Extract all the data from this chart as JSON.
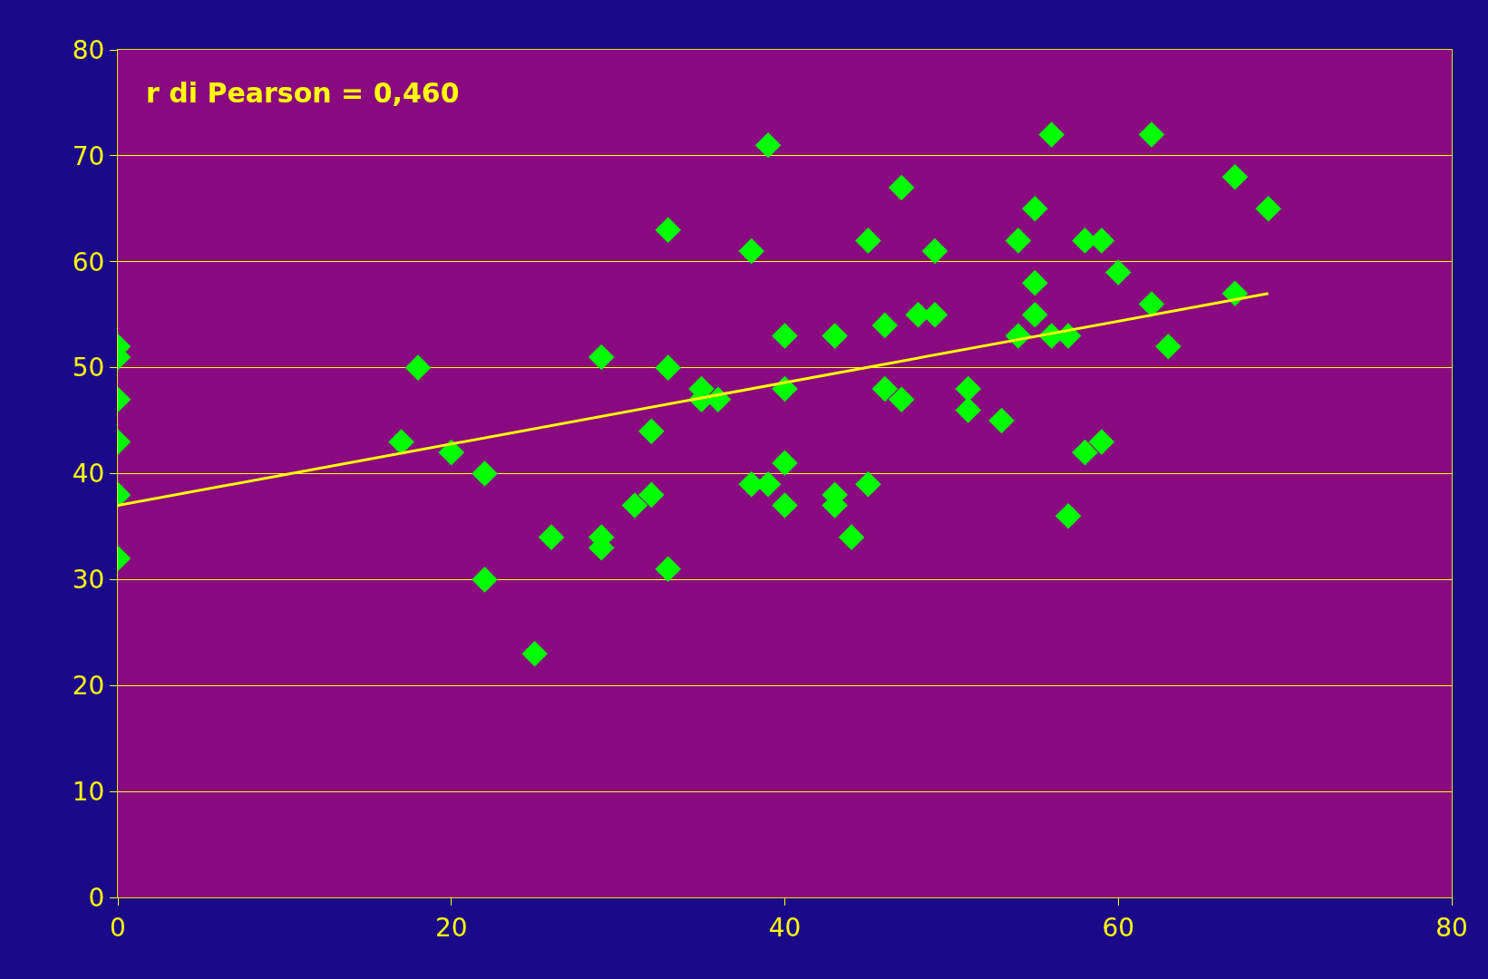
{
  "chart_data": {
    "type": "scatter",
    "annotations": [
      "r di Pearson = 0,460"
    ],
    "xlim": [
      0,
      80
    ],
    "xticks": [
      0,
      20,
      40,
      60,
      80
    ],
    "ylim": [
      0,
      80
    ],
    "yticks": [
      0,
      10,
      20,
      30,
      40,
      50,
      60,
      70,
      80
    ],
    "grid": "y",
    "series": [
      {
        "marker": "diamond",
        "color": "#00ff00",
        "x": [
          0,
          0,
          0,
          0,
          0,
          0,
          17,
          18,
          20,
          22,
          22,
          25,
          26,
          29,
          29,
          29,
          31,
          32,
          32,
          33,
          33,
          33,
          35,
          35,
          36,
          38,
          38,
          39,
          39,
          40,
          40,
          40,
          40,
          43,
          43,
          43,
          44,
          45,
          45,
          46,
          46,
          47,
          47,
          48,
          49,
          49,
          51,
          51,
          53,
          54,
          54,
          55,
          55,
          55,
          56,
          56,
          57,
          57,
          58,
          58,
          59,
          59,
          60,
          62,
          62,
          63,
          67,
          67,
          69
        ],
        "values": [
          52,
          51,
          47,
          43,
          38,
          32,
          43,
          50,
          42,
          40,
          30,
          23,
          34,
          51,
          34,
          33,
          37,
          44,
          38,
          63,
          50,
          31,
          48,
          47,
          47,
          61,
          39,
          71,
          39,
          53,
          48,
          41,
          37,
          53,
          38,
          37,
          34,
          62,
          39,
          54,
          48,
          67,
          47,
          55,
          61,
          55,
          48,
          46,
          45,
          62,
          53,
          65,
          58,
          55,
          72,
          53,
          53,
          36,
          62,
          42,
          62,
          43,
          59,
          72,
          56,
          52,
          68,
          57,
          65
        ]
      },
      {
        "type": "line",
        "color": "#ffff00",
        "line_style": "solid",
        "x": [
          0,
          69
        ],
        "values": [
          37,
          57
        ]
      }
    ]
  }
}
